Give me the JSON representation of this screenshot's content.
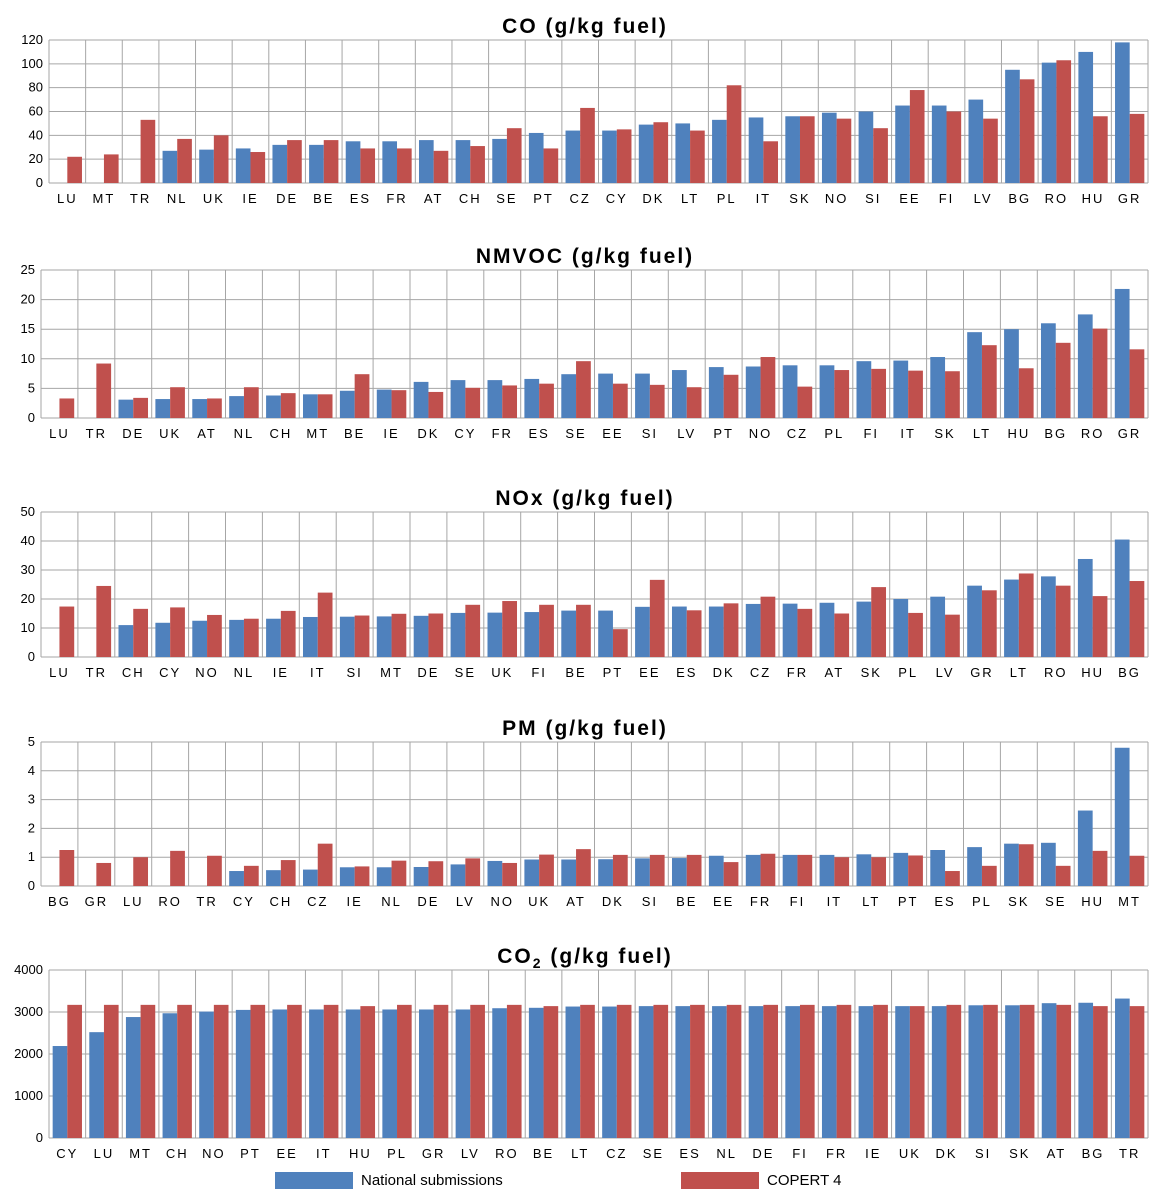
{
  "legend": {
    "national": "National submissions",
    "copert": "COPERT 4"
  },
  "colors": {
    "national": "#4F81BD",
    "copert": "#C0504D",
    "grid": "#A6A6A6"
  },
  "chart_data": [
    {
      "type": "bar",
      "title": "CO (g/kg fuel)",
      "ylim": [
        0,
        120
      ],
      "yticks": [
        0,
        20,
        40,
        60,
        80,
        100,
        120
      ],
      "categories": [
        "LU",
        "MT",
        "TR",
        "NL",
        "UK",
        "IE",
        "DE",
        "BE",
        "ES",
        "FR",
        "AT",
        "CH",
        "SE",
        "PT",
        "CZ",
        "CY",
        "DK",
        "LT",
        "PL",
        "IT",
        "SK",
        "NO",
        "SI",
        "EE",
        "FI",
        "LV",
        "BG",
        "RO",
        "HU",
        "GR"
      ],
      "series": [
        {
          "name": "National submissions",
          "values": [
            null,
            null,
            null,
            27,
            28,
            29,
            32,
            32,
            35,
            35,
            36,
            36,
            37,
            42,
            44,
            44,
            49,
            50,
            53,
            55,
            56,
            59,
            60,
            65,
            65,
            70,
            95,
            101,
            110,
            118
          ]
        },
        {
          "name": "COPERT 4",
          "values": [
            22,
            24,
            53,
            37,
            40,
            26,
            36,
            36,
            29,
            29,
            27,
            31,
            46,
            29,
            63,
            45,
            51,
            44,
            82,
            35,
            56,
            54,
            46,
            78,
            60,
            54,
            87,
            103,
            56,
            58
          ]
        }
      ],
      "grid": true
    },
    {
      "type": "bar",
      "title": "NMVOC (g/kg fuel)",
      "ylim": [
        0,
        25
      ],
      "yticks": [
        0,
        5,
        10,
        15,
        20,
        25
      ],
      "categories": [
        "LU",
        "TR",
        "DE",
        "UK",
        "AT",
        "NL",
        "CH",
        "MT",
        "BE",
        "IE",
        "DK",
        "CY",
        "FR",
        "ES",
        "SE",
        "EE",
        "SI",
        "LV",
        "PT",
        "NO",
        "CZ",
        "PL",
        "FI",
        "IT",
        "SK",
        "LT",
        "HU",
        "BG",
        "RO",
        "GR"
      ],
      "series": [
        {
          "name": "National submissions",
          "values": [
            null,
            null,
            3.1,
            3.2,
            3.2,
            3.7,
            3.8,
            4.0,
            4.6,
            4.8,
            6.1,
            6.4,
            6.4,
            6.6,
            7.4,
            7.5,
            7.5,
            8.1,
            8.6,
            8.7,
            8.9,
            8.9,
            9.6,
            9.7,
            10.3,
            14.5,
            15.0,
            16.0,
            17.5,
            21.8
          ]
        },
        {
          "name": "COPERT 4",
          "values": [
            3.3,
            9.2,
            3.4,
            5.2,
            3.3,
            5.2,
            4.2,
            4.0,
            7.4,
            4.7,
            4.4,
            5.1,
            5.5,
            5.8,
            9.6,
            5.8,
            5.6,
            5.2,
            7.3,
            10.3,
            5.3,
            8.1,
            8.3,
            8.0,
            7.9,
            12.3,
            8.4,
            12.7,
            15.1,
            11.6
          ]
        }
      ],
      "grid": true
    },
    {
      "type": "bar",
      "title": "NOx (g/kg fuel)",
      "ylim": [
        0,
        50
      ],
      "yticks": [
        0,
        10,
        20,
        30,
        40,
        50
      ],
      "categories": [
        "LU",
        "TR",
        "CH",
        "CY",
        "NO",
        "NL",
        "IE",
        "IT",
        "SI",
        "MT",
        "DE",
        "SE",
        "UK",
        "FI",
        "BE",
        "PT",
        "EE",
        "ES",
        "DK",
        "CZ",
        "FR",
        "AT",
        "SK",
        "PL",
        "LV",
        "GR",
        "LT",
        "RO",
        "HU",
        "BG"
      ],
      "series": [
        {
          "name": "National submissions",
          "values": [
            null,
            null,
            11.0,
            11.8,
            12.5,
            12.8,
            13.2,
            13.8,
            13.9,
            14.0,
            14.2,
            15.2,
            15.3,
            15.5,
            16.0,
            16.0,
            17.3,
            17.4,
            17.4,
            18.3,
            18.4,
            18.7,
            19.1,
            20.0,
            20.8,
            24.6,
            26.7,
            27.8,
            33.8,
            40.5
          ]
        },
        {
          "name": "COPERT 4",
          "values": [
            17.4,
            24.5,
            16.6,
            17.1,
            14.5,
            13.2,
            15.9,
            22.2,
            14.3,
            14.9,
            15.0,
            18.0,
            19.3,
            18.0,
            18.0,
            9.6,
            26.6,
            16.1,
            18.5,
            20.8,
            16.6,
            15.0,
            24.1,
            15.2,
            14.6,
            23.0,
            28.8,
            24.6,
            21.0,
            26.2
          ]
        }
      ],
      "grid": true
    },
    {
      "type": "bar",
      "title": "PM (g/kg fuel)",
      "ylim": [
        0,
        5
      ],
      "yticks": [
        0,
        1,
        2,
        3,
        4,
        5
      ],
      "categories": [
        "BG",
        "GR",
        "LU",
        "RO",
        "TR",
        "CY",
        "CH",
        "CZ",
        "IE",
        "NL",
        "DE",
        "LV",
        "NO",
        "UK",
        "AT",
        "DK",
        "SI",
        "BE",
        "EE",
        "FR",
        "FI",
        "IT",
        "LT",
        "PT",
        "ES",
        "PL",
        "SK",
        "SE",
        "HU",
        "MT"
      ],
      "series": [
        {
          "name": "National submissions",
          "values": [
            null,
            null,
            null,
            null,
            null,
            0.52,
            0.55,
            0.57,
            0.65,
            0.65,
            0.66,
            0.75,
            0.87,
            0.92,
            0.92,
            0.93,
            0.96,
            0.97,
            1.05,
            1.08,
            1.08,
            1.08,
            1.1,
            1.15,
            1.25,
            1.35,
            1.47,
            1.5,
            2.62,
            4.8
          ]
        },
        {
          "name": "COPERT 4",
          "values": [
            1.25,
            0.8,
            1.0,
            1.22,
            1.05,
            0.7,
            0.9,
            1.47,
            0.68,
            0.88,
            0.86,
            0.96,
            0.8,
            1.09,
            1.28,
            1.08,
            1.08,
            1.08,
            0.83,
            1.12,
            1.08,
            1.0,
            1.0,
            1.06,
            0.52,
            0.7,
            1.45,
            0.7,
            1.22,
            1.05
          ]
        }
      ],
      "grid": true
    },
    {
      "type": "bar",
      "title": "CO2 (g/kg fuel)",
      "ylim": [
        0,
        4000
      ],
      "yticks": [
        0,
        1000,
        2000,
        3000,
        4000
      ],
      "categories": [
        "CY",
        "LU",
        "MT",
        "CH",
        "NO",
        "PT",
        "EE",
        "IT",
        "HU",
        "PL",
        "GR",
        "LV",
        "RO",
        "BE",
        "LT",
        "CZ",
        "SE",
        "ES",
        "NL",
        "DE",
        "FI",
        "FR",
        "IE",
        "UK",
        "DK",
        "SI",
        "SK",
        "AT",
        "BG",
        "TR"
      ],
      "series": [
        {
          "name": "National submissions",
          "values": [
            2190,
            2520,
            2880,
            2970,
            3010,
            3050,
            3060,
            3060,
            3060,
            3060,
            3060,
            3060,
            3090,
            3100,
            3130,
            3130,
            3140,
            3140,
            3140,
            3140,
            3140,
            3140,
            3140,
            3140,
            3140,
            3160,
            3160,
            3210,
            3220,
            3320
          ]
        },
        {
          "name": "COPERT 4",
          "values": [
            3170,
            3170,
            3170,
            3170,
            3170,
            3170,
            3170,
            3170,
            3140,
            3170,
            3170,
            3170,
            3170,
            3140,
            3170,
            3170,
            3170,
            3170,
            3170,
            3170,
            3170,
            3170,
            3170,
            3140,
            3170,
            3170,
            3170,
            3170,
            3140,
            3140
          ]
        }
      ],
      "grid": true
    }
  ]
}
